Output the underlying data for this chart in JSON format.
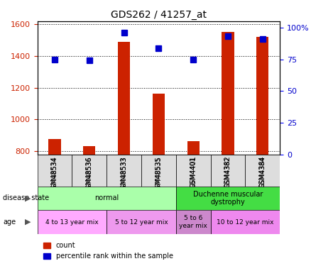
{
  "title": "GDS262 / 41257_at",
  "samples": [
    "GSM48534",
    "GSM48536",
    "GSM48533",
    "GSM48535",
    "GSM4401",
    "GSM4382",
    "GSM4384"
  ],
  "count_values": [
    875,
    830,
    1490,
    1165,
    865,
    1555,
    1520
  ],
  "percentile_values": [
    75,
    74,
    96,
    84,
    75,
    93,
    91
  ],
  "ylim_left": [
    780,
    1620
  ],
  "ylim_right": [
    0,
    105
  ],
  "yticks_left": [
    800,
    1000,
    1200,
    1400,
    1600
  ],
  "yticks_right": [
    0,
    25,
    50,
    75,
    100
  ],
  "bar_color": "#cc2200",
  "dot_color": "#0000cc",
  "bar_width": 0.35,
  "grid_color": "#000000",
  "disease_state_groups": [
    {
      "label": "normal",
      "start": 0,
      "end": 3,
      "color": "#aaffaa"
    },
    {
      "label": "Duchenne muscular\ndystrophy",
      "start": 4,
      "end": 6,
      "color": "#44dd44"
    }
  ],
  "age_groups": [
    {
      "label": "4 to 13 year mix",
      "start": 0,
      "end": 1,
      "color": "#ffaaff"
    },
    {
      "label": "5 to 12 year mix",
      "start": 2,
      "end": 3,
      "color": "#ee99ee"
    },
    {
      "label": "5 to 6\nyear mix",
      "start": 4,
      "end": 4,
      "color": "#cc88cc"
    },
    {
      "label": "10 to 12 year mix",
      "start": 5,
      "end": 6,
      "color": "#ee88ee"
    }
  ],
  "legend_count_label": "count",
  "legend_percentile_label": "percentile rank within the sample",
  "disease_state_label": "disease state",
  "age_label": "age"
}
